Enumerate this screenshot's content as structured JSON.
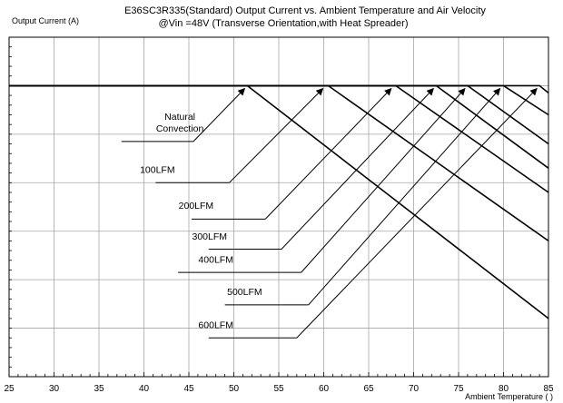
{
  "chart_data": {
    "type": "line",
    "title": "E36SC3R335(Standard)  Output Current vs. Ambient Temperature and Air Velocity",
    "subtitle": "@Vin =48V (Transverse Orientation,with Heat Spreader)",
    "ylabel": "Output Current (A)",
    "xlabel": "Ambient Temperature (   )",
    "xlim": [
      25,
      85
    ],
    "ylim": [
      0,
      7
    ],
    "x_ticks": [
      25,
      30,
      35,
      40,
      45,
      50,
      55,
      60,
      65,
      70,
      75,
      80,
      85
    ],
    "y_gridlines": [
      1,
      2,
      3,
      4,
      5,
      6
    ],
    "y_tick_labels_shown": false,
    "grid": true,
    "series": [
      {
        "name": "Natural Convection",
        "x": [
          25,
          51.5,
          85
        ],
        "y": [
          6,
          6,
          1.2
        ]
      },
      {
        "name": "100LFM",
        "x": [
          25,
          60.5,
          85
        ],
        "y": [
          6,
          6,
          2.8
        ]
      },
      {
        "name": "200LFM",
        "x": [
          25,
          68,
          85
        ],
        "y": [
          6,
          6,
          3.8
        ]
      },
      {
        "name": "300LFM",
        "x": [
          25,
          72.5,
          85
        ],
        "y": [
          6,
          6,
          4.3
        ]
      },
      {
        "name": "400LFM",
        "x": [
          25,
          76,
          85
        ],
        "y": [
          6,
          6,
          4.8
        ]
      },
      {
        "name": "500LFM",
        "x": [
          25,
          80,
          85
        ],
        "y": [
          6,
          6,
          5.4
        ]
      },
      {
        "name": "600LFM",
        "x": [
          25,
          84,
          85
        ],
        "y": [
          6,
          6,
          5.85
        ]
      }
    ],
    "annotations": [
      {
        "lines": [
          "Natural",
          "Convection"
        ],
        "label_x": 44,
        "label_y": 5.05,
        "underline_x": [
          37.5,
          45.5
        ],
        "underline_y": 4.85,
        "arrow_to": [
          51.2,
          5.94
        ]
      },
      {
        "lines": [
          "100LFM"
        ],
        "label_x": 41.5,
        "label_y": 4.2,
        "underline_x": [
          41.3,
          49.5
        ],
        "underline_y": 4.0,
        "arrow_to": [
          59.9,
          5.94
        ]
      },
      {
        "lines": [
          "200LFM"
        ],
        "label_x": 45.8,
        "label_y": 3.46,
        "underline_x": [
          45.3,
          53.5
        ],
        "underline_y": 3.25,
        "arrow_to": [
          67.5,
          5.94
        ]
      },
      {
        "lines": [
          "300LFM"
        ],
        "label_x": 47.3,
        "label_y": 2.83,
        "underline_x": [
          47.2,
          55.3
        ],
        "underline_y": 2.63,
        "arrow_to": [
          72.2,
          5.94
        ]
      },
      {
        "lines": [
          "400LFM"
        ],
        "label_x": 48.0,
        "label_y": 2.35,
        "underline_x": [
          43.8,
          57.5
        ],
        "underline_y": 2.15,
        "arrow_to": [
          75.7,
          5.94
        ]
      },
      {
        "lines": [
          "500LFM"
        ],
        "label_x": 51.2,
        "label_y": 1.68,
        "underline_x": [
          49.0,
          58.3
        ],
        "underline_y": 1.48,
        "arrow_to": [
          79.6,
          5.94
        ]
      },
      {
        "lines": [
          "600LFM"
        ],
        "label_x": 48.0,
        "label_y": 1.0,
        "underline_x": [
          47.2,
          57.0
        ],
        "underline_y": 0.8,
        "arrow_to": [
          83.7,
          5.94
        ]
      }
    ]
  }
}
